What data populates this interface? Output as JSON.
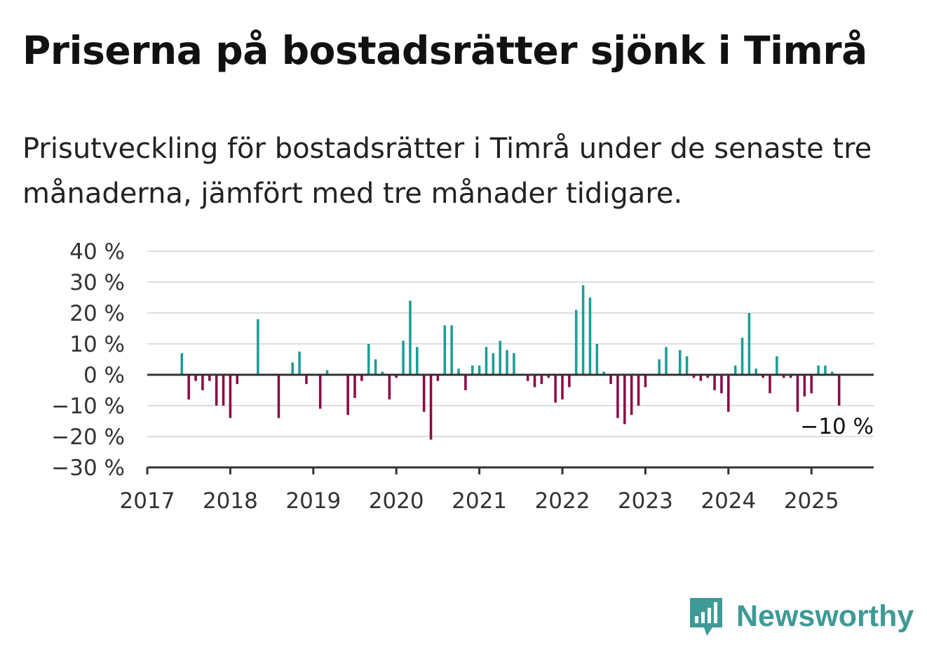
{
  "title": "Priserna på bostadsrätter sjönk i Timrå",
  "subtitle": "Prisutveckling för bostadsrätter i Timrå under de senaste tre månaderna, jämfört med tre månader tidigare.",
  "brand": {
    "name": "Newsworthy",
    "color": "#3f9a96"
  },
  "colors": {
    "positive": "#1a9e96",
    "negative": "#8c0a45",
    "grid": "#dddddd",
    "axis": "#333333",
    "text": "#333333"
  },
  "chart_data": {
    "type": "bar",
    "title": "Priserna på bostadsrätter sjönk i Timrå",
    "subtitle": "Prisutveckling för bostadsrätter i Timrå under de senaste tre månaderna, jämfört med tre månader tidigare.",
    "xlabel": "",
    "ylabel": "",
    "ylim": [
      -30,
      40
    ],
    "xlim": [
      2017.0,
      2025.75
    ],
    "y_ticks": [
      40,
      30,
      20,
      10,
      0,
      -10,
      -20,
      -30
    ],
    "y_tick_labels": [
      "40 %",
      "30 %",
      "20 %",
      "10 %",
      "0 %",
      "−10 %",
      "−20 %",
      "−30 %"
    ],
    "x_ticks": [
      2017,
      2018,
      2019,
      2020,
      2021,
      2022,
      2023,
      2024,
      2025
    ],
    "x_tick_labels": [
      "2017",
      "2018",
      "2019",
      "2020",
      "2021",
      "2022",
      "2023",
      "2024",
      "2025"
    ],
    "grid": true,
    "legend": "none",
    "annotation": {
      "text": "−10 %",
      "x": 2025.33,
      "y": -10
    },
    "months": [
      "2017-06",
      "2017-07",
      "2017-08",
      "2017-09",
      "2017-10",
      "2017-11",
      "2017-12",
      "2018-01",
      "2018-02",
      "2018-03",
      "2018-04",
      "2018-05",
      "2018-06",
      "2018-07",
      "2018-08",
      "2018-09",
      "2018-10",
      "2018-11",
      "2018-12",
      "2019-01",
      "2019-02",
      "2019-03",
      "2019-04",
      "2019-05",
      "2019-06",
      "2019-07",
      "2019-08",
      "2019-09",
      "2019-10",
      "2019-11",
      "2019-12",
      "2020-01",
      "2020-02",
      "2020-03",
      "2020-04",
      "2020-05",
      "2020-06",
      "2020-07",
      "2020-08",
      "2020-09",
      "2020-10",
      "2020-11",
      "2020-12",
      "2021-01",
      "2021-02",
      "2021-03",
      "2021-04",
      "2021-05",
      "2021-06",
      "2021-07",
      "2021-08",
      "2021-09",
      "2021-10",
      "2021-11",
      "2021-12",
      "2022-01",
      "2022-02",
      "2022-03",
      "2022-04",
      "2022-05",
      "2022-06",
      "2022-07",
      "2022-08",
      "2022-09",
      "2022-10",
      "2022-11",
      "2022-12",
      "2023-01",
      "2023-02",
      "2023-03",
      "2023-04",
      "2023-05",
      "2023-06",
      "2023-07",
      "2023-08",
      "2023-09",
      "2023-10",
      "2023-11",
      "2023-12",
      "2024-01",
      "2024-02",
      "2024-03",
      "2024-04",
      "2024-05",
      "2024-06",
      "2024-07",
      "2024-08",
      "2024-09",
      "2024-10",
      "2024-11",
      "2024-12",
      "2025-01",
      "2025-02",
      "2025-03",
      "2025-04",
      "2025-05"
    ],
    "values": [
      7,
      -8,
      -2,
      -5,
      -2,
      -10,
      -10,
      -14,
      -3,
      0,
      0,
      18,
      0,
      0,
      -14,
      0,
      4,
      7.5,
      -3,
      0,
      -11,
      1.5,
      0,
      0,
      -13,
      -7.5,
      -2,
      10,
      5,
      1,
      -8,
      -1,
      11,
      24,
      9,
      -12,
      -21,
      -2,
      16,
      16,
      2,
      -5,
      3,
      3,
      9,
      7,
      11,
      8,
      7,
      0,
      -2,
      -4,
      -3,
      -1,
      -9,
      -8,
      -4,
      21,
      29,
      25,
      10,
      1,
      -3,
      -14,
      -16,
      -13,
      -10,
      -4,
      0,
      5,
      9,
      0,
      8,
      6,
      -1,
      -2,
      -1,
      -5,
      -6,
      -12,
      3,
      12,
      20,
      2,
      -1,
      -6,
      6,
      -1,
      -1,
      -12,
      -7,
      -6,
      3,
      3,
      1,
      -10
    ]
  }
}
